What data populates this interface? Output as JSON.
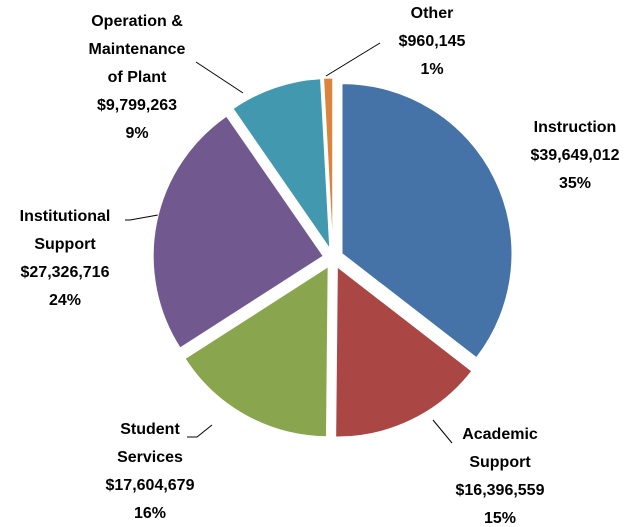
{
  "chart_data": {
    "type": "pie",
    "categories": [
      [
        "Instruction"
      ],
      [
        "Academic",
        "Support"
      ],
      [
        "Student",
        "Services"
      ],
      [
        "Institutional",
        "Support"
      ],
      [
        "Operation &",
        "Maintenance",
        "of Plant"
      ],
      [
        "Other"
      ]
    ],
    "values": [
      39649012,
      16396559,
      17604679,
      27326716,
      9799263,
      960145
    ],
    "value_labels": [
      "$39,649,012",
      "$16,396,559",
      "$17,604,679",
      "$27,326,716",
      "$9,799,263",
      "$960,145"
    ],
    "percent_labels": [
      "35%",
      "15%",
      "16%",
      "24%",
      "9%",
      "1%"
    ],
    "colors": [
      "#4572a7",
      "#aa4643",
      "#89a54e",
      "#71588f",
      "#4198af",
      "#db843d"
    ]
  }
}
